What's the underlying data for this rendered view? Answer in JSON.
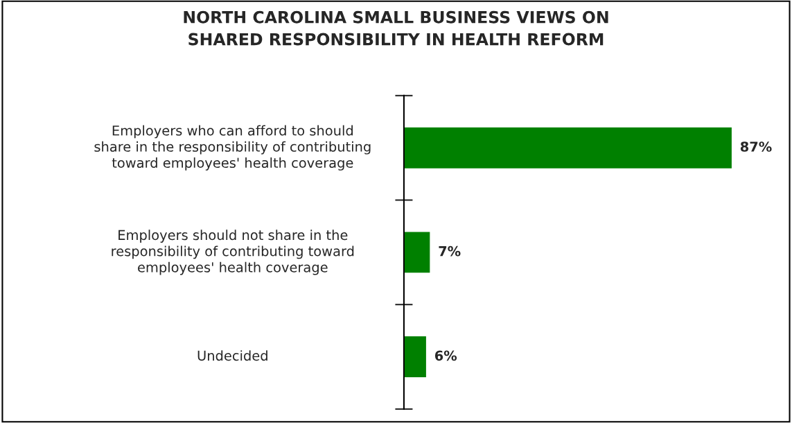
{
  "chart_data": {
    "type": "bar",
    "orientation": "horizontal",
    "title": "NORTH CAROLINA SMALL BUSINESS VIEWS ON\nSHARED RESPONSIBILITY IN HEALTH REFORM",
    "categories": [
      "Employers who can afford to should\nshare in the responsibility of contributing\ntoward employees' health coverage",
      "Employers should not share in the\nresponsibility of contributing toward\nemployees' health coverage",
      "Undecided"
    ],
    "values": [
      87,
      7,
      6
    ],
    "value_labels": [
      "87%",
      "7%",
      "6%"
    ],
    "color": "#008000"
  }
}
